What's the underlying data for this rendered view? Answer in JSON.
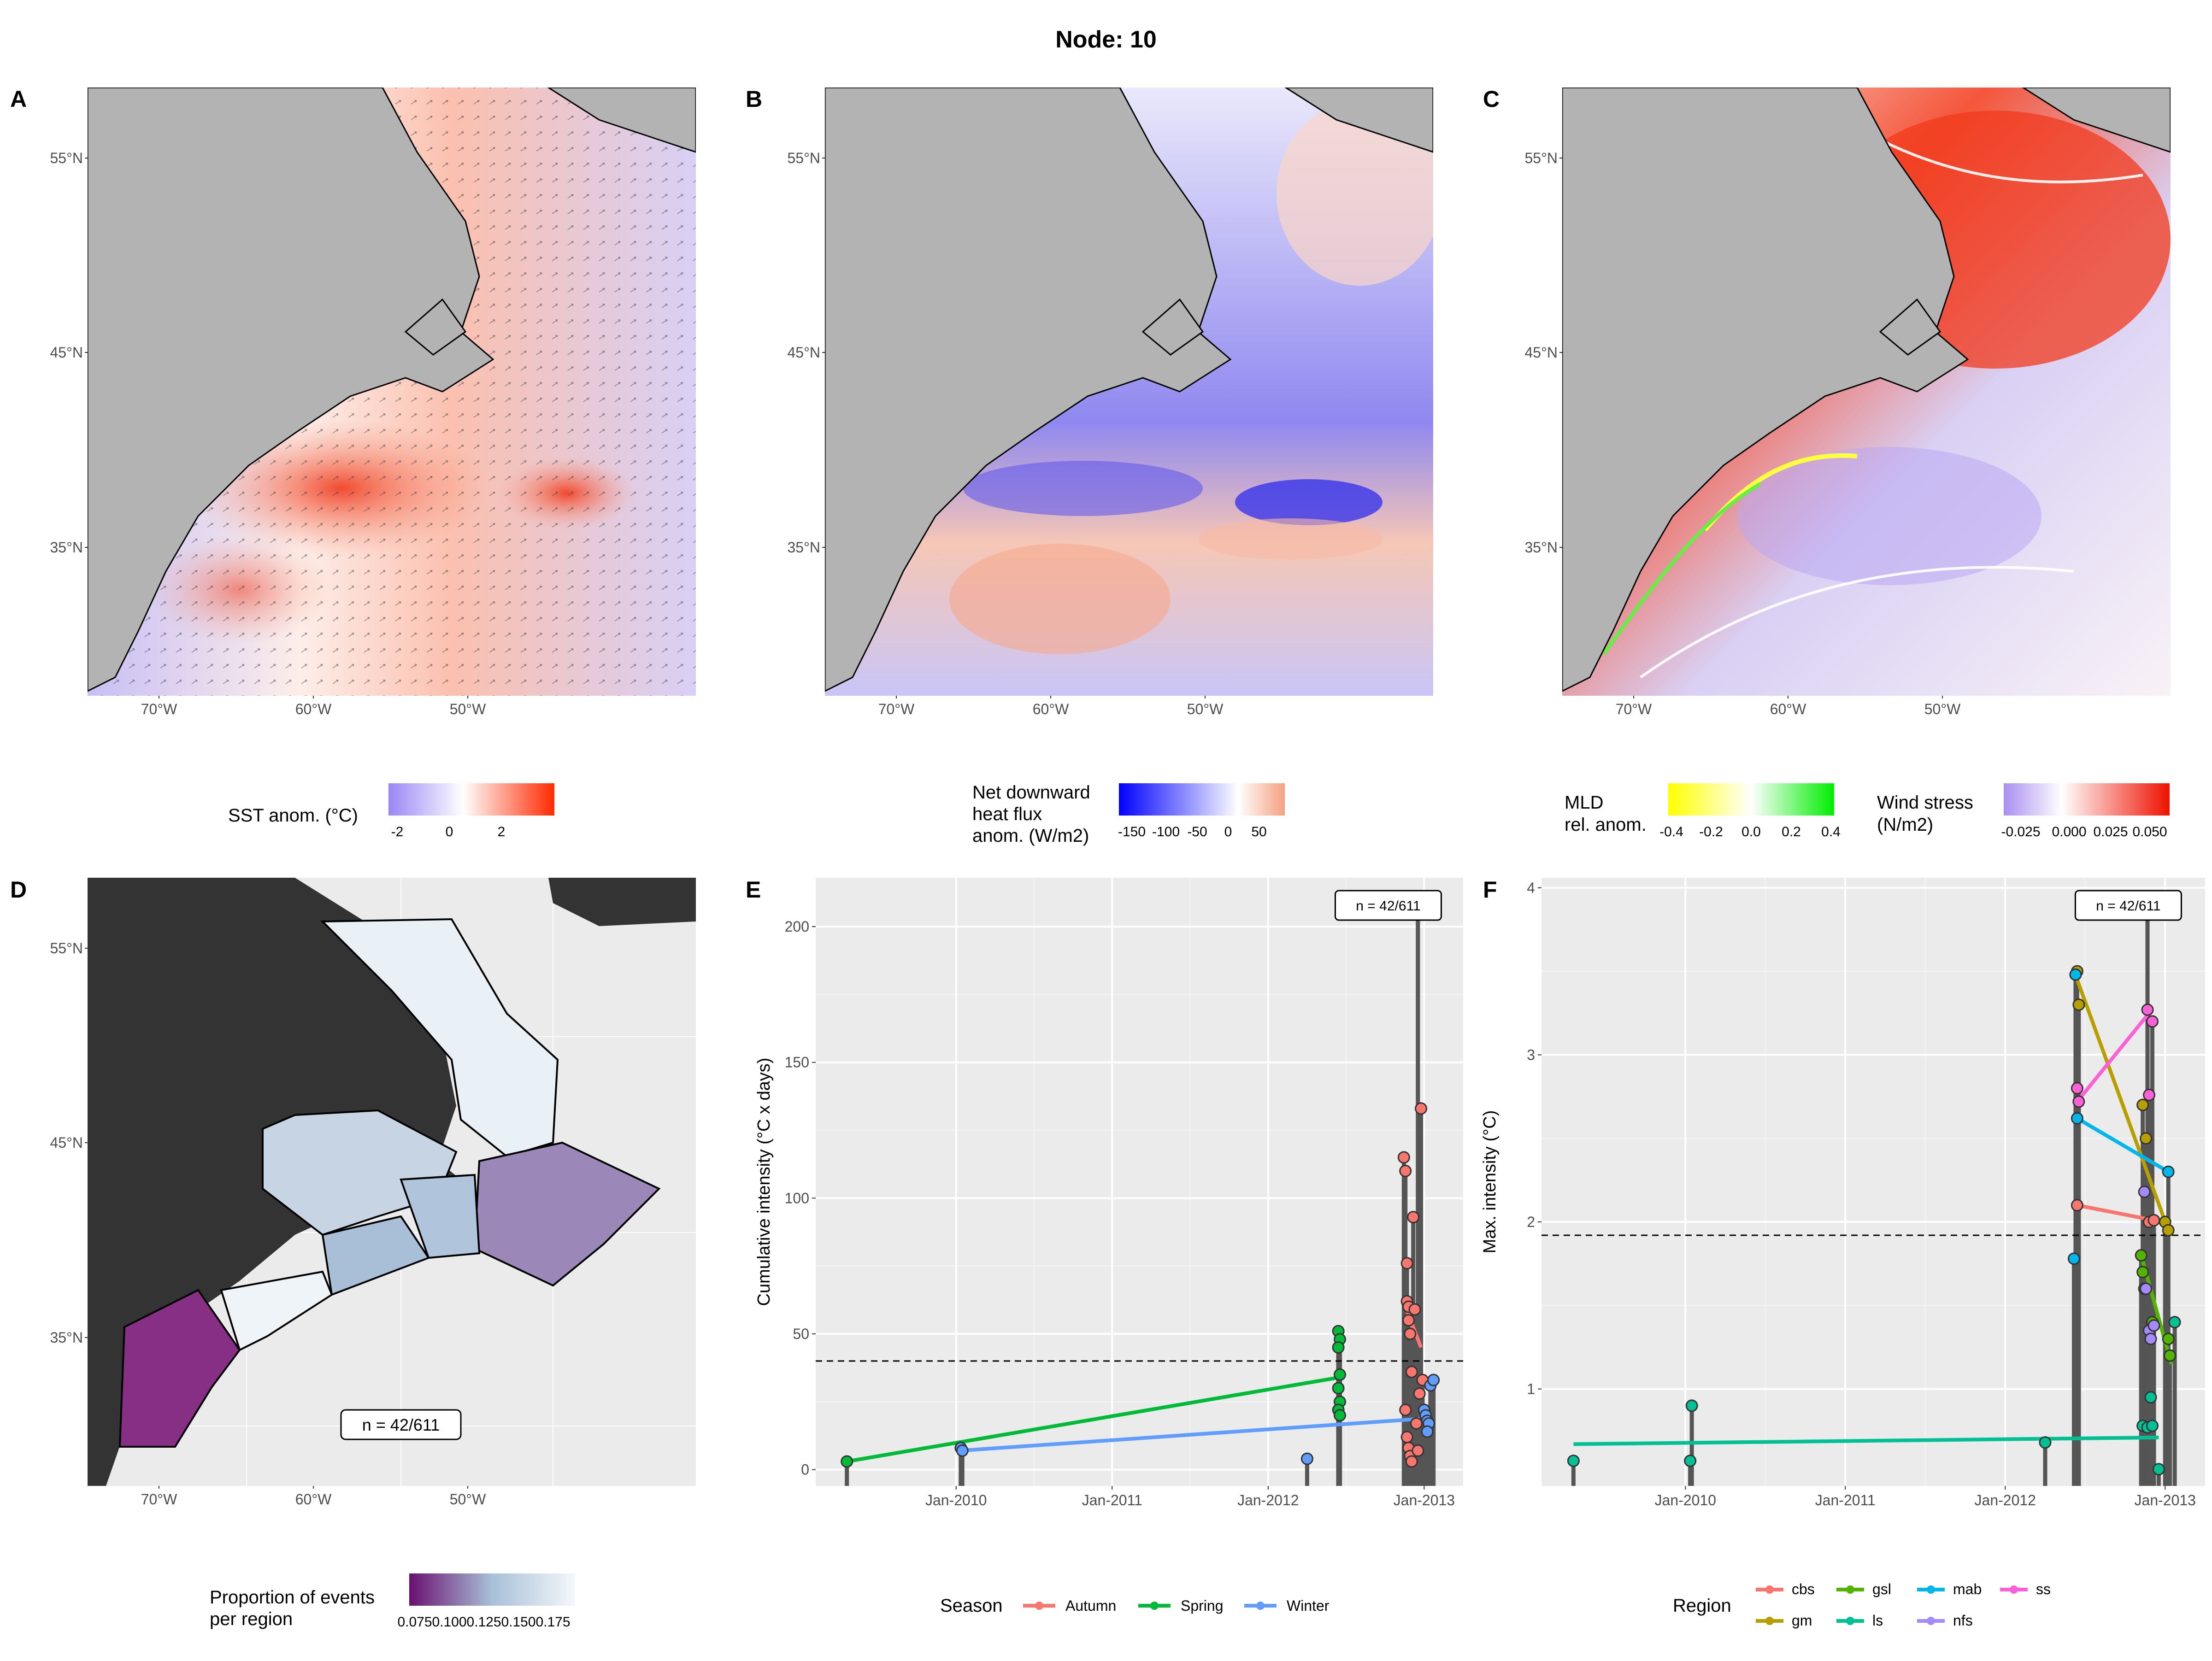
{
  "figure": {
    "title": "Node: 10"
  },
  "panels": {
    "A": {
      "label": "A"
    },
    "B": {
      "label": "B"
    },
    "C": {
      "label": "C"
    },
    "D": {
      "label": "D"
    },
    "E": {
      "label": "E"
    },
    "F": {
      "label": "F"
    }
  },
  "map_axes": {
    "lat_ticks": [
      "55°N",
      "45°N",
      "35°N"
    ],
    "lon_ticks": [
      "70°W",
      "60°W",
      "50°W"
    ]
  },
  "legends": {
    "sst": {
      "title": "SST anom. (°C)",
      "ticks": [
        "-2",
        "0",
        "2"
      ],
      "colors": [
        "#9a86f5",
        "#ffffff",
        "#ff2a00"
      ]
    },
    "heatflux": {
      "title_lines": [
        "Net downward",
        "heat flux",
        "anom. (W/m2)"
      ],
      "ticks": [
        "-150",
        "-100",
        "-50",
        "0",
        "50"
      ],
      "colors": [
        "#0000ff",
        "#ffffff",
        "#f4a080"
      ]
    },
    "mld": {
      "title_lines": [
        "MLD",
        "rel. anom."
      ],
      "ticks": [
        "-0.4",
        "-0.2",
        "0.0",
        "0.2",
        "0.4"
      ],
      "colors": [
        "#ffff00",
        "#ffffff",
        "#00ee00"
      ]
    },
    "wind": {
      "title_lines": [
        "Wind stress",
        "(N/m2)"
      ],
      "ticks": [
        "-0.025",
        "0.000",
        "0.025",
        "0.050"
      ],
      "colors": [
        "#a98ff0",
        "#ffffff",
        "#ee1100"
      ]
    },
    "prop": {
      "title_lines": [
        "Proportion of events",
        "per region"
      ],
      "ticks": [
        "0.075",
        "0.100",
        "0.125",
        "0.150",
        "0.175"
      ],
      "colors": [
        "#6a1070",
        "#a8c0d8",
        "#f4f8fb"
      ]
    },
    "season": {
      "title": "Season",
      "items": [
        {
          "name": "Autumn",
          "color": "#f8766d"
        },
        {
          "name": "Spring",
          "color": "#00ba38"
        },
        {
          "name": "Winter",
          "color": "#619cff"
        }
      ]
    },
    "region": {
      "title": "Region",
      "items": [
        {
          "name": "cbs",
          "color": "#f8766d"
        },
        {
          "name": "gm",
          "color": "#b79f00"
        },
        {
          "name": "gsl",
          "color": "#53b400"
        },
        {
          "name": "ls",
          "color": "#00c094"
        },
        {
          "name": "mab",
          "color": "#00b6eb"
        },
        {
          "name": "nfs",
          "color": "#a58aff"
        },
        {
          "name": "ss",
          "color": "#fb61d7"
        }
      ]
    }
  },
  "panel_D": {
    "n_label": "n = 42/611"
  },
  "chart_data": [
    {
      "panel": "E",
      "type": "scatter",
      "ylabel": "Cumulative intensity (°C x days)",
      "xlabel": "",
      "annotation": "n = 42/611",
      "y_ticks": [
        0,
        50,
        100,
        150,
        200
      ],
      "x_ticks": [
        "Jan-2010",
        "Jan-2011",
        "Jan-2012",
        "Jan-2013"
      ],
      "xlim": [
        2009.1,
        2013.25
      ],
      "ylim": [
        -6,
        218
      ],
      "hline": 40,
      "grid": true,
      "series": [
        {
          "name": "Autumn",
          "color": "#f8766d",
          "points": [
            [
              2012.87,
              115
            ],
            [
              2012.88,
              110
            ],
            [
              2012.89,
              76
            ],
            [
              2012.89,
              62
            ],
            [
              2012.9,
              60
            ],
            [
              2012.9,
              55
            ],
            [
              2012.91,
              50
            ],
            [
              2012.92,
              36
            ],
            [
              2012.88,
              22
            ],
            [
              2012.89,
              12
            ],
            [
              2012.9,
              8
            ],
            [
              2012.91,
              5
            ],
            [
              2012.92,
              3
            ],
            [
              2012.93,
              93
            ],
            [
              2012.94,
              59
            ],
            [
              2012.95,
              17
            ],
            [
              2012.96,
              7
            ],
            [
              2012.97,
              28
            ],
            [
              2012.98,
              133
            ],
            [
              2012.99,
              33
            ],
            [
              2012.96,
              207
            ]
          ],
          "trend": [
            [
              2012.88,
              60
            ],
            [
              2012.98,
              45
            ]
          ]
        },
        {
          "name": "Spring",
          "color": "#00ba38",
          "points": [
            [
              2009.3,
              3
            ],
            [
              2012.45,
              51
            ],
            [
              2012.46,
              48
            ],
            [
              2012.45,
              45
            ],
            [
              2012.46,
              35
            ],
            [
              2012.45,
              30
            ],
            [
              2012.46,
              25
            ],
            [
              2012.45,
              22
            ],
            [
              2012.46,
              20
            ]
          ],
          "trend": [
            [
              2009.3,
              3
            ],
            [
              2012.46,
              34
            ]
          ]
        },
        {
          "name": "Winter",
          "color": "#619cff",
          "points": [
            [
              2010.03,
              8
            ],
            [
              2010.04,
              7
            ],
            [
              2012.25,
              4
            ],
            [
              2013.0,
              22
            ],
            [
              2013.01,
              20
            ],
            [
              2013.02,
              18
            ],
            [
              2013.03,
              17
            ],
            [
              2013.04,
              31
            ],
            [
              2013.06,
              33
            ],
            [
              2013.02,
              14
            ]
          ],
          "trend": [
            [
              2010.03,
              7
            ],
            [
              2013.05,
              19
            ]
          ]
        }
      ]
    },
    {
      "panel": "F",
      "type": "scatter",
      "ylabel": "Max. intensity (°C)",
      "xlabel": "",
      "annotation": "n = 42/611",
      "y_ticks": [
        1,
        2,
        3,
        4
      ],
      "x_ticks": [
        "Jan-2010",
        "Jan-2011",
        "Jan-2012",
        "Jan-2013"
      ],
      "xlim": [
        2009.1,
        2013.25
      ],
      "ylim": [
        0.42,
        4.06
      ],
      "hline": 1.92,
      "grid": true,
      "series": [
        {
          "name": "cbs",
          "color": "#f8766d",
          "points": [
            [
              2012.45,
              2.1
            ],
            [
              2012.9,
              2.0
            ],
            [
              2012.93,
              2.01
            ]
          ],
          "trend": [
            [
              2012.45,
              2.1
            ],
            [
              2012.93,
              2.01
            ]
          ]
        },
        {
          "name": "gm",
          "color": "#b79f00",
          "points": [
            [
              2012.45,
              3.5
            ],
            [
              2012.46,
              3.3
            ],
            [
              2012.86,
              2.7
            ],
            [
              2012.88,
              2.5
            ],
            [
              2013.0,
              2.0
            ],
            [
              2013.02,
              1.95
            ]
          ],
          "trend": [
            [
              2012.45,
              3.45
            ],
            [
              2013.02,
              1.95
            ]
          ]
        },
        {
          "name": "gsl",
          "color": "#53b400",
          "points": [
            [
              2012.85,
              1.8
            ],
            [
              2012.86,
              1.7
            ],
            [
              2012.87,
              1.6
            ],
            [
              2012.92,
              1.4
            ],
            [
              2013.03,
              1.2
            ],
            [
              2013.02,
              1.3
            ]
          ],
          "trend": [
            [
              2012.85,
              1.8
            ],
            [
              2013.04,
              1.15
            ]
          ]
        },
        {
          "name": "ls",
          "color": "#00c094",
          "points": [
            [
              2009.3,
              0.57
            ],
            [
              2010.04,
              0.9
            ],
            [
              2010.03,
              0.57
            ],
            [
              2012.25,
              0.68
            ],
            [
              2012.86,
              0.78
            ],
            [
              2012.89,
              0.77
            ],
            [
              2012.91,
              0.95
            ],
            [
              2012.92,
              0.78
            ],
            [
              2012.96,
              0.52
            ],
            [
              2013.06,
              1.4
            ]
          ],
          "trend": [
            [
              2009.3,
              0.67
            ],
            [
              2012.96,
              0.71
            ]
          ]
        },
        {
          "name": "mab",
          "color": "#00b6eb",
          "points": [
            [
              2012.45,
              2.62
            ],
            [
              2012.44,
              3.48
            ],
            [
              2012.43,
              1.78
            ],
            [
              2013.02,
              2.3
            ]
          ],
          "trend": [
            [
              2012.45,
              2.62
            ],
            [
              2013.02,
              2.3
            ]
          ]
        },
        {
          "name": "nfs",
          "color": "#a58aff",
          "points": [
            [
              2012.87,
              2.18
            ],
            [
              2012.88,
              1.6
            ],
            [
              2012.9,
              1.35
            ],
            [
              2012.91,
              1.3
            ],
            [
              2012.93,
              1.38
            ],
            [
              2012.89,
              3.92
            ]
          ],
          "trend": []
        },
        {
          "name": "ss",
          "color": "#fb61d7",
          "points": [
            [
              2012.45,
              2.8
            ],
            [
              2012.46,
              2.72
            ],
            [
              2012.89,
              3.27
            ],
            [
              2012.9,
              2.76
            ],
            [
              2012.92,
              3.2
            ]
          ],
          "trend": [
            [
              2012.45,
              2.72
            ],
            [
              2012.9,
              3.25
            ]
          ]
        }
      ]
    }
  ]
}
